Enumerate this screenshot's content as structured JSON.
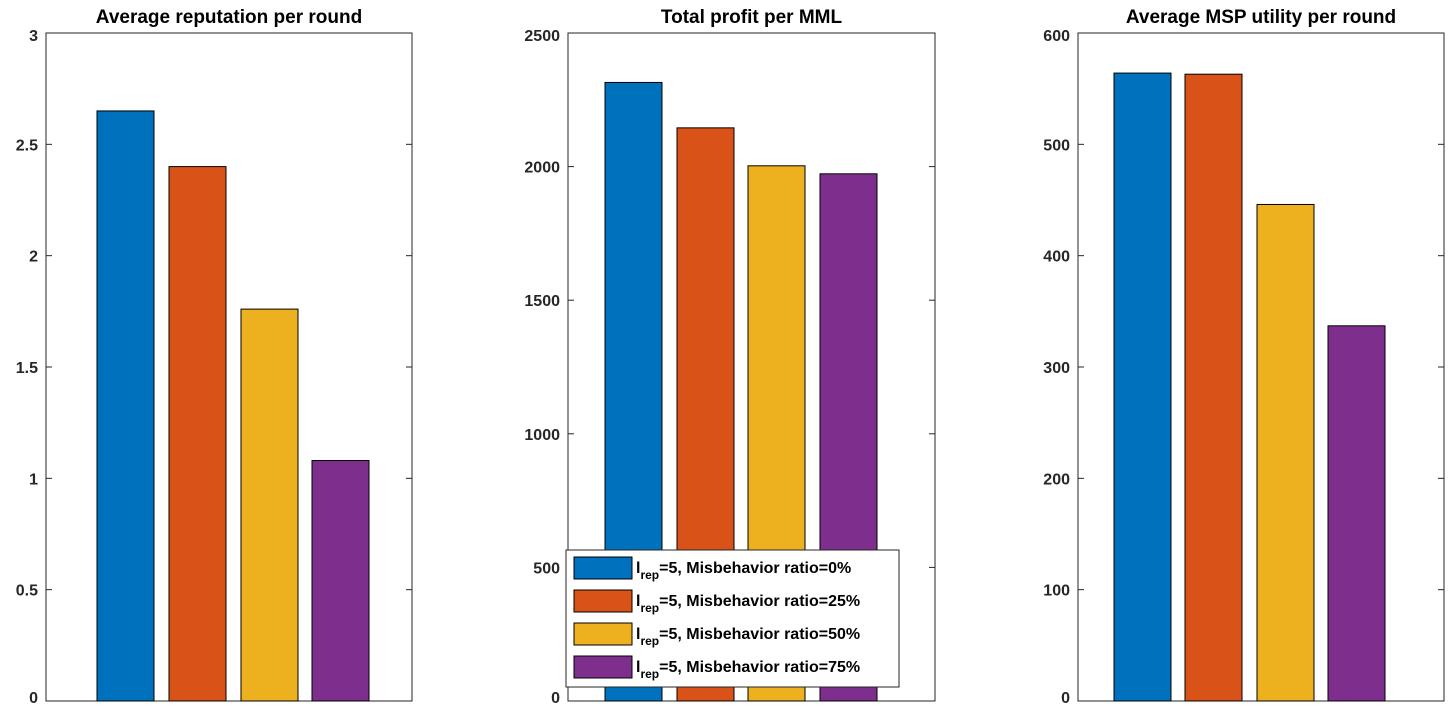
{
  "chart_data": [
    {
      "type": "bar",
      "title": "Average reputation per round",
      "ylim": [
        0,
        3
      ],
      "yticks": [
        0,
        0.5,
        1,
        1.5,
        2,
        2.5,
        3
      ],
      "ytick_labels": [
        "0",
        "0.5",
        "1",
        "1.5",
        "2",
        "2.5",
        "3"
      ],
      "series": [
        {
          "name": "l_rep=5, Misbehavior ratio=0%",
          "values": [
            2.65
          ]
        },
        {
          "name": "l_rep=5, Misbehavior ratio=25%",
          "values": [
            2.4
          ]
        },
        {
          "name": "l_rep=5, Misbehavior ratio=50%",
          "values": [
            1.76
          ]
        },
        {
          "name": "l_rep=5, Misbehavior ratio=75%",
          "values": [
            1.08
          ]
        }
      ]
    },
    {
      "type": "bar",
      "title": "Total profit per MML",
      "ylim": [
        0,
        2500
      ],
      "yticks": [
        0,
        500,
        1000,
        1500,
        2000,
        2500
      ],
      "ytick_labels": [
        "0",
        "500",
        "1000",
        "1500",
        "2000",
        "2500"
      ],
      "series": [
        {
          "name": "l_rep=5, Misbehavior ratio=0%",
          "values": [
            2315
          ]
        },
        {
          "name": "l_rep=5, Misbehavior ratio=25%",
          "values": [
            2145
          ]
        },
        {
          "name": "l_rep=5, Misbehavior ratio=50%",
          "values": [
            2003
          ]
        },
        {
          "name": "l_rep=5, Misbehavior ratio=75%",
          "values": [
            1973
          ]
        }
      ],
      "legend": {
        "placement": "bottom-center",
        "entries": [
          {
            "main": "l",
            "sub": "rep",
            "text": "=5, Misbehavior ratio=0%"
          },
          {
            "main": "l",
            "sub": "rep",
            "text": "=5, Misbehavior ratio=25%"
          },
          {
            "main": "l",
            "sub": "rep",
            "text": "=5, Misbehavior ratio=50%"
          },
          {
            "main": "l",
            "sub": "rep",
            "text": "=5, Misbehavior ratio=75%"
          }
        ]
      }
    },
    {
      "type": "bar",
      "title": "Average MSP utility per round",
      "ylim": [
        0,
        600
      ],
      "yticks": [
        0,
        100,
        200,
        300,
        400,
        500,
        600
      ],
      "ytick_labels": [
        "0",
        "100",
        "200",
        "300",
        "400",
        "500",
        "600"
      ],
      "series": [
        {
          "name": "l_rep=5, Misbehavior ratio=0%",
          "values": [
            564
          ]
        },
        {
          "name": "l_rep=5, Misbehavior ratio=25%",
          "values": [
            563
          ]
        },
        {
          "name": "l_rep=5, Misbehavior ratio=50%",
          "values": [
            446
          ]
        },
        {
          "name": "l_rep=5, Misbehavior ratio=75%",
          "values": [
            337
          ]
        }
      ]
    }
  ],
  "colors": [
    "#0072BD",
    "#D95319",
    "#EDB120",
    "#7E2F8E"
  ]
}
